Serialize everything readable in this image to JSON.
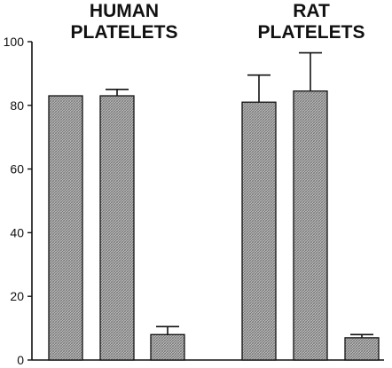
{
  "chart_data": {
    "type": "bar",
    "groups": [
      {
        "label_lines": [
          "HUMAN",
          "PLATELETS"
        ],
        "values": [
          83,
          83,
          8
        ],
        "errors": [
          null,
          2,
          2.5
        ]
      },
      {
        "label_lines": [
          "RAT",
          "PLATELETS"
        ],
        "values": [
          81,
          84.5,
          7
        ],
        "errors": [
          8.5,
          12,
          1
        ]
      }
    ],
    "yticks": [
      0,
      20,
      40,
      60,
      80,
      100
    ],
    "ylim": [
      0,
      100
    ],
    "xlabel": "",
    "ylabel": "",
    "grid": false,
    "legend": "none",
    "colors": {
      "bar_fill": "#c8c8c8",
      "bar_hatch": "#6e6e6e",
      "stroke": "#111111"
    }
  }
}
